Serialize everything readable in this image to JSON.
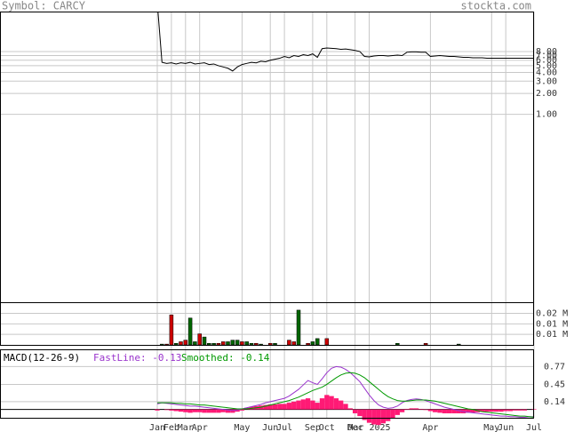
{
  "header": {
    "symbol": "Symbol: CARCY",
    "site": "stockta.com"
  },
  "chart_data": [
    {
      "type": "line",
      "log_scale": true,
      "grid": true,
      "color": "#000000",
      "categories": [
        "Jan",
        null,
        null,
        "Feb",
        null,
        null,
        "Mar",
        null,
        null,
        "Apr",
        null,
        null,
        null,
        null,
        null,
        null,
        null,
        null,
        "May",
        null,
        null,
        null,
        null,
        null,
        "Jun",
        null,
        null,
        "Jul",
        null,
        null,
        null,
        null,
        null,
        "Sep",
        null,
        null,
        "Oct",
        null,
        null,
        null,
        null,
        null,
        "Dec",
        null,
        null,
        "Mar 2025",
        null,
        null,
        null,
        null,
        null,
        null,
        null,
        null,
        null,
        null,
        null,
        null,
        "Apr",
        null,
        null,
        null,
        null,
        null,
        null,
        null,
        null,
        null,
        null,
        null,
        null,
        "May",
        null,
        null,
        "Jun",
        null,
        null,
        null,
        null,
        null,
        "Jul"
      ],
      "values": [
        40,
        5.6,
        5.4,
        5.5,
        5.3,
        5.5,
        5.4,
        5.6,
        5.3,
        5.4,
        5.5,
        5.2,
        5.3,
        5.0,
        4.8,
        4.6,
        4.2,
        4.8,
        5.2,
        5.4,
        5.6,
        5.5,
        5.8,
        5.7,
        6.0,
        6.2,
        6.4,
        6.8,
        6.5,
        7.0,
        6.8,
        7.2,
        7.0,
        7.4,
        6.6,
        8.8,
        9.0,
        8.9,
        8.8,
        8.6,
        8.7,
        8.5,
        8.3,
        8.0,
        6.8,
        6.7,
        6.9,
        7.0,
        7.0,
        6.9,
        7.0,
        7.1,
        7.0,
        7.8,
        7.9,
        7.9,
        7.8,
        7.8,
        6.8,
        6.9,
        7.0,
        6.9,
        6.8,
        6.8,
        6.7,
        6.6,
        6.6,
        6.5,
        6.5,
        6.5,
        6.4,
        6.4,
        6.4,
        6.4,
        6.4,
        6.4,
        6.4,
        6.4,
        6.4,
        6.4,
        6.4
      ],
      "ylim": [
        0.002,
        30
      ],
      "yticks": [
        {
          "value": 1,
          "label": "1.00"
        },
        {
          "value": 2,
          "label": "2.00"
        },
        {
          "value": 3,
          "label": "3.00"
        },
        {
          "value": 4,
          "label": "4.00"
        },
        {
          "value": 5,
          "label": "5.00"
        },
        {
          "value": 6,
          "label": "6.00"
        },
        {
          "value": 7,
          "label": "7.00"
        },
        {
          "value": 8,
          "label": "8.00"
        }
      ]
    },
    {
      "type": "bar",
      "grid": true,
      "values": [
        0,
        0.0005,
        0.0005,
        0.019,
        0.001,
        0.002,
        0.003,
        0.017,
        0.002,
        0.007,
        0.005,
        0.001,
        0.001,
        0.001,
        0.002,
        0.002,
        0.003,
        0.003,
        0.002,
        0.002,
        0.001,
        0.001,
        0.0005,
        0,
        0.001,
        0.001,
        0,
        0,
        0.003,
        0.002,
        0.022,
        0,
        0.001,
        0.002,
        0.004,
        0,
        0.004,
        0,
        0,
        0,
        0,
        0,
        0,
        0,
        0,
        0,
        0,
        0,
        0,
        0,
        0,
        0.001,
        0,
        0,
        0,
        0,
        0,
        0.001,
        0,
        0,
        0,
        0,
        0,
        0,
        0.0005,
        0,
        0,
        0,
        0,
        0,
        0,
        0,
        0,
        0,
        0,
        0,
        0,
        0,
        0,
        0,
        0
      ],
      "colors": [
        "#cc0000",
        "#006600",
        "#cc0000",
        "#cc0000",
        "#006600",
        "#cc0000",
        "#cc0000",
        "#006600",
        "#006600",
        "#cc0000",
        "#006600",
        "#006600",
        "#006600",
        "#cc0000",
        "#cc0000",
        "#006600",
        "#006600",
        "#006600",
        "#cc0000",
        "#006600",
        "#006600",
        "#cc0000",
        "#006600",
        "#006600",
        "#cc0000",
        "#006600",
        "#006600",
        "#006600",
        "#cc0000",
        "#cc0000",
        "#006600",
        "#006600",
        "#cc0000",
        "#006600",
        "#006600",
        "#006600",
        "#cc0000",
        "#006600",
        "#006600",
        "#006600",
        "#006600",
        "#006600",
        "#006600",
        "#006600",
        "#006600",
        "#006600",
        "#006600",
        "#006600",
        "#006600",
        "#006600",
        "#006600",
        "#006600",
        "#006600",
        "#006600",
        "#006600",
        "#006600",
        "#006600",
        "#cc0000",
        "#006600",
        "#006600",
        "#006600",
        "#006600",
        "#006600",
        "#006600",
        "#006600",
        "#006600",
        "#006600",
        "#006600",
        "#006600",
        "#006600",
        "#006600",
        "#006600",
        "#006600",
        "#006600",
        "#006600",
        "#006600",
        "#006600",
        "#006600",
        "#006600",
        "#006600",
        "#006600"
      ],
      "ylim": [
        0,
        0.027
      ],
      "yticks": [
        {
          "value": 0.02,
          "label": "0.02 M"
        },
        {
          "value": 0.0133,
          "label": "0.01 M"
        },
        {
          "value": 0.0067,
          "label": "0.01 M"
        }
      ]
    },
    {
      "type": "macd",
      "title": "MACD(12-26-9)",
      "grid": true,
      "series": [
        {
          "name": "FastLine: -0.13",
          "color": "#9933cc",
          "values": [
            0.1,
            0.12,
            0.11,
            0.1,
            0.09,
            0.08,
            0.07,
            0.06,
            0.06,
            0.05,
            0.04,
            0.03,
            0.02,
            0.01,
            0.0,
            -0.01,
            -0.02,
            -0.01,
            0.01,
            0.03,
            0.05,
            0.07,
            0.09,
            0.12,
            0.14,
            0.16,
            0.18,
            0.2,
            0.24,
            0.3,
            0.36,
            0.44,
            0.52,
            0.48,
            0.45,
            0.55,
            0.66,
            0.74,
            0.77,
            0.76,
            0.72,
            0.66,
            0.58,
            0.5,
            0.38,
            0.26,
            0.16,
            0.08,
            0.04,
            0.02,
            0.03,
            0.06,
            0.12,
            0.16,
            0.18,
            0.19,
            0.18,
            0.16,
            0.13,
            0.1,
            0.07,
            0.04,
            0.02,
            0.0,
            -0.02,
            -0.04,
            -0.05,
            -0.06,
            -0.07,
            -0.08,
            -0.09,
            -0.1,
            -0.11,
            -0.12,
            -0.12,
            -0.13,
            -0.13,
            -0.14,
            -0.14,
            -0.13,
            -0.13
          ]
        },
        {
          "name": "Smoothed: -0.14",
          "color": "#009900",
          "values": [
            0.12,
            0.12,
            0.12,
            0.12,
            0.11,
            0.11,
            0.1,
            0.1,
            0.09,
            0.08,
            0.08,
            0.07,
            0.06,
            0.05,
            0.04,
            0.03,
            0.02,
            0.01,
            0.01,
            0.01,
            0.02,
            0.03,
            0.04,
            0.06,
            0.08,
            0.1,
            0.12,
            0.14,
            0.16,
            0.19,
            0.22,
            0.26,
            0.3,
            0.34,
            0.37,
            0.4,
            0.45,
            0.51,
            0.57,
            0.62,
            0.65,
            0.66,
            0.65,
            0.62,
            0.57,
            0.5,
            0.43,
            0.36,
            0.29,
            0.23,
            0.19,
            0.16,
            0.15,
            0.15,
            0.16,
            0.17,
            0.17,
            0.17,
            0.16,
            0.15,
            0.13,
            0.11,
            0.09,
            0.07,
            0.05,
            0.03,
            0.01,
            0.0,
            -0.02,
            -0.04,
            -0.05,
            -0.06,
            -0.07,
            -0.08,
            -0.09,
            -0.1,
            -0.11,
            -0.12,
            -0.12,
            -0.13,
            -0.14
          ]
        }
      ],
      "histogram": {
        "color": "#ff1a75",
        "values": [
          -0.02,
          0,
          -0.01,
          -0.02,
          -0.03,
          -0.04,
          -0.05,
          -0.06,
          -0.05,
          -0.05,
          -0.06,
          -0.06,
          -0.06,
          -0.06,
          -0.05,
          -0.06,
          -0.06,
          -0.04,
          -0.02,
          0.03,
          0.05,
          0.06,
          0.07,
          0.08,
          0.09,
          0.09,
          0.1,
          0.1,
          0.12,
          0.14,
          0.16,
          0.18,
          0.2,
          0.16,
          0.12,
          0.2,
          0.26,
          0.24,
          0.2,
          0.16,
          0.1,
          0.02,
          -0.07,
          -0.12,
          -0.19,
          -0.24,
          -0.27,
          -0.28,
          -0.25,
          -0.21,
          -0.16,
          -0.1,
          -0.05,
          0.01,
          0.02,
          0.02,
          0.01,
          -0.01,
          -0.03,
          -0.05,
          -0.06,
          -0.07,
          -0.07,
          -0.07,
          -0.07,
          -0.07,
          -0.06,
          -0.06,
          -0.05,
          -0.04,
          -0.04,
          -0.04,
          -0.04,
          -0.04,
          -0.03,
          -0.03,
          -0.02,
          -0.02,
          -0.02,
          0,
          0.01
        ]
      },
      "ylim": [
        -0.15,
        1.08
      ],
      "yticks": [
        0.77,
        0.45,
        0.14
      ]
    }
  ]
}
